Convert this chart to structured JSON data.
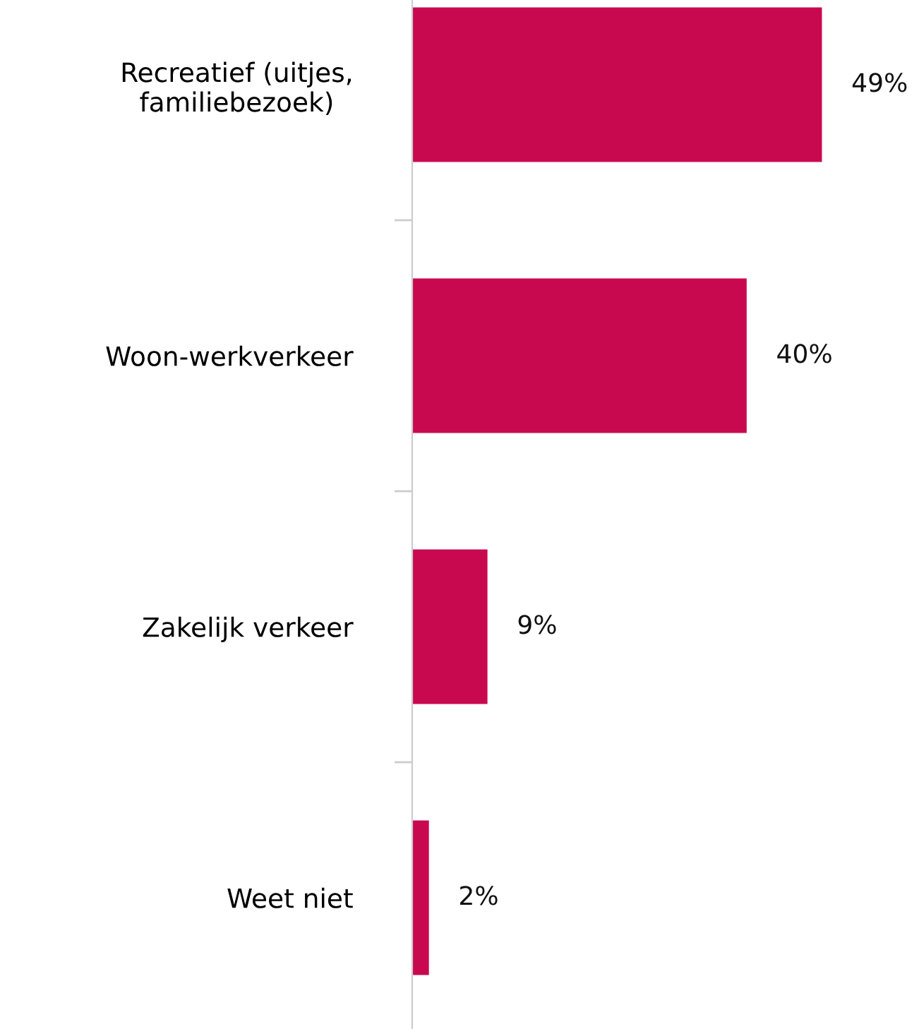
{
  "chart_data": {
    "type": "bar",
    "orientation": "horizontal",
    "categories": [
      "Recreatief (uitjes,\nfamiliebezoek)",
      "Woon-werkverkeer",
      "Zakelijk verkeer",
      "Weet niet"
    ],
    "values": [
      49,
      40,
      9,
      2
    ],
    "value_labels": [
      "49%",
      "40%",
      "9%",
      "2%"
    ],
    "color": "#c8094f",
    "grid": false,
    "legend": false
  }
}
